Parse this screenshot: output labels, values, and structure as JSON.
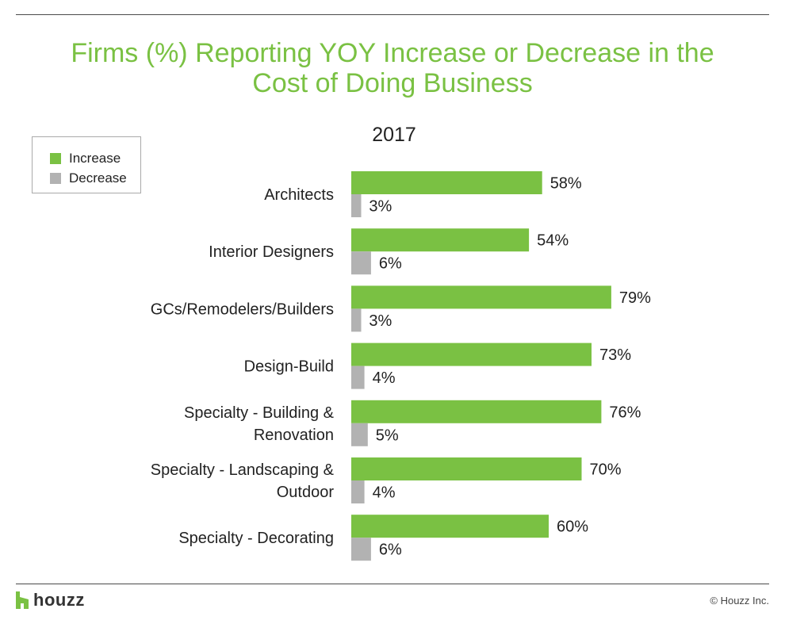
{
  "chart_data": {
    "type": "bar",
    "orientation": "horizontal",
    "title": "Firms (%) Reporting YOY Increase or Decrease in the Cost of Doing Business",
    "title_lines": [
      "Firms (%) Reporting YOY Increase or Decrease in the",
      "Cost of Doing Business"
    ],
    "subtitle": "2017",
    "categories": [
      [
        "Architects"
      ],
      [
        "Interior Designers"
      ],
      [
        "GCs/Remodelers/Builders"
      ],
      [
        "Design-Build"
      ],
      [
        "Specialty - Building &",
        "Renovation"
      ],
      [
        "Specialty - Landscaping &",
        "Outdoor"
      ],
      [
        "Specialty - Decorating"
      ]
    ],
    "series": [
      {
        "name": "Increase",
        "color": "#7ac143",
        "values": [
          58,
          54,
          79,
          73,
          76,
          70,
          60
        ]
      },
      {
        "name": "Decrease",
        "color": "#b2b2b2",
        "values": [
          3,
          6,
          3,
          4,
          5,
          4,
          6
        ]
      }
    ],
    "value_suffix": "%",
    "xlim": [
      0,
      100
    ],
    "grid": false,
    "legend": "top-left"
  },
  "footer": {
    "brand": "houzz",
    "copyright": "© Houzz Inc."
  }
}
